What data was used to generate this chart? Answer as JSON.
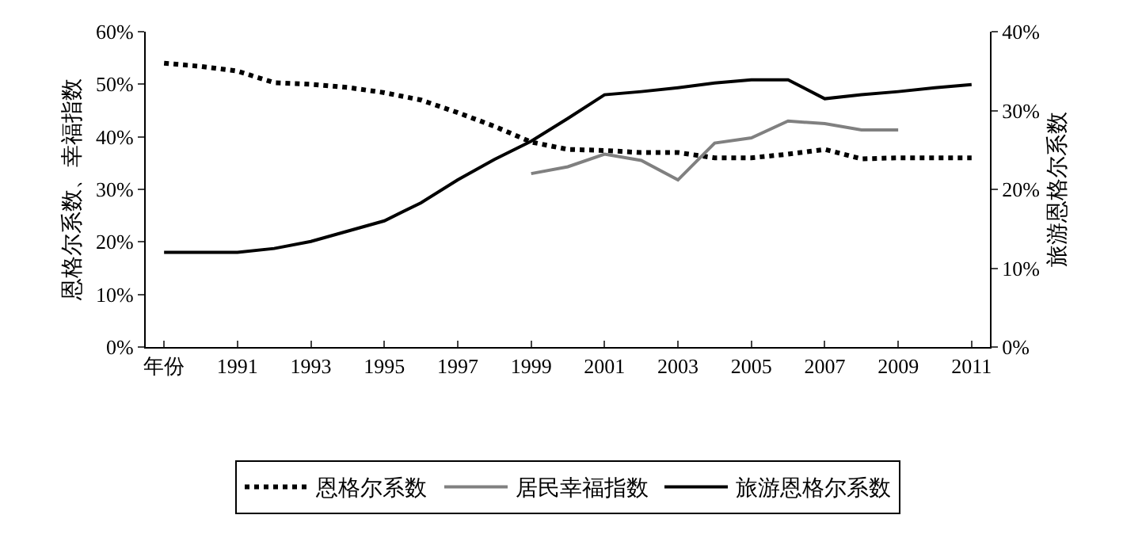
{
  "chart_data": {
    "type": "line",
    "categories": [
      "年份",
      null,
      "1991",
      null,
      "1993",
      null,
      "1995",
      null,
      "1997",
      null,
      "1999",
      null,
      "2001",
      null,
      "2003",
      null,
      "2005",
      null,
      "2007",
      null,
      "2009",
      null,
      "2011"
    ],
    "ylabel": "恩格尔系数、幸福指数",
    "y2label": "旅游恩格尔系数",
    "ylim": [
      0,
      60
    ],
    "yticks": [
      {
        "value": 0,
        "label": "0%"
      },
      {
        "value": 10,
        "label": "10%"
      },
      {
        "value": 20,
        "label": "20%"
      },
      {
        "value": 30,
        "label": "30%"
      },
      {
        "value": 40,
        "label": "40%"
      },
      {
        "value": 50,
        "label": "50%"
      },
      {
        "value": 60,
        "label": "60%"
      }
    ],
    "y2lim": [
      0,
      40
    ],
    "y2ticks": [
      {
        "value": 0,
        "label": "0%"
      },
      {
        "value": 10,
        "label": "10%"
      },
      {
        "value": 20,
        "label": "20%"
      },
      {
        "value": 30,
        "label": "30%"
      },
      {
        "value": 40,
        "label": "40%"
      }
    ],
    "legend": "bottom",
    "marker": "none",
    "series": [
      {
        "name": "恩格尔系数",
        "color": "#000000",
        "line_style": "dotted",
        "values": [
          54,
          53.4,
          52.5,
          50.3,
          50,
          49.4,
          48.4,
          47,
          44.6,
          42,
          39,
          37.6,
          37.4,
          37,
          37,
          36,
          36,
          36.7,
          37.6,
          35.8,
          36,
          36,
          36
        ]
      },
      {
        "name": "居民幸福指数",
        "color": "#808080",
        "line_style": "solid",
        "values": [
          null,
          null,
          null,
          null,
          null,
          null,
          null,
          null,
          null,
          null,
          33,
          34.3,
          36.7,
          35.5,
          31.8,
          38.8,
          39.8,
          43,
          42.5,
          41.3,
          41.3,
          null,
          null
        ]
      },
      {
        "name": "旅游恩格尔系数",
        "color": "#000000",
        "line_style": "solid",
        "axis": "y2",
        "values": [
          12,
          12,
          12,
          12.5,
          13.4,
          14.7,
          16,
          18.3,
          21.2,
          23.8,
          26.1,
          29,
          32,
          32.4,
          32.9,
          33.5,
          33.9,
          33.9,
          31.5,
          32,
          32.4,
          32.9,
          33.3
        ]
      }
    ]
  }
}
